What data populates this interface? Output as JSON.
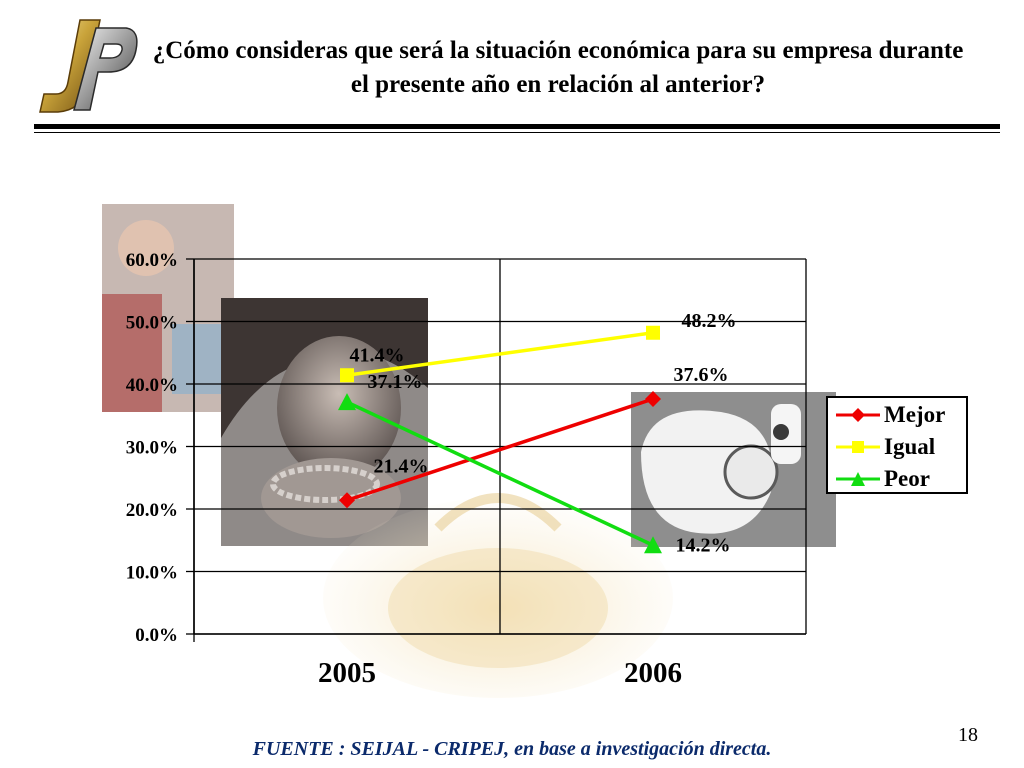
{
  "slide": {
    "title": "¿Cómo consideras que será la situación económica para su empresa durante el presente año en relación al anterior?",
    "source": "FUENTE :  SEIJAL - CRIPEJ,  en base a investigación directa.",
    "page_number": "18",
    "logo_icon": "jp-monogram-logo"
  },
  "chart_data": {
    "type": "line",
    "categories": [
      "2005",
      "2006"
    ],
    "ylim": [
      0,
      60
    ],
    "yticks": [
      0,
      10,
      20,
      30,
      40,
      50,
      60
    ],
    "ytick_labels": [
      "0.0%",
      "10.0%",
      "20.0%",
      "30.0%",
      "40.0%",
      "50.0%",
      "60.0%"
    ],
    "grid": true,
    "legend": "right",
    "series": [
      {
        "name": "Mejor",
        "values": [
          21.4,
          37.6
        ],
        "labels": [
          "21.4%",
          "37.6%"
        ],
        "color": "#ee0000",
        "marker": "diamond"
      },
      {
        "name": "Igual",
        "values": [
          41.4,
          48.2
        ],
        "labels": [
          "41.4%",
          "48.2%"
        ],
        "color": "#ffff00",
        "marker": "square"
      },
      {
        "name": "Peor",
        "values": [
          37.1,
          14.2
        ],
        "labels": [
          "37.1%",
          "14.2%"
        ],
        "color": "#11dd11",
        "marker": "triangle"
      }
    ]
  }
}
